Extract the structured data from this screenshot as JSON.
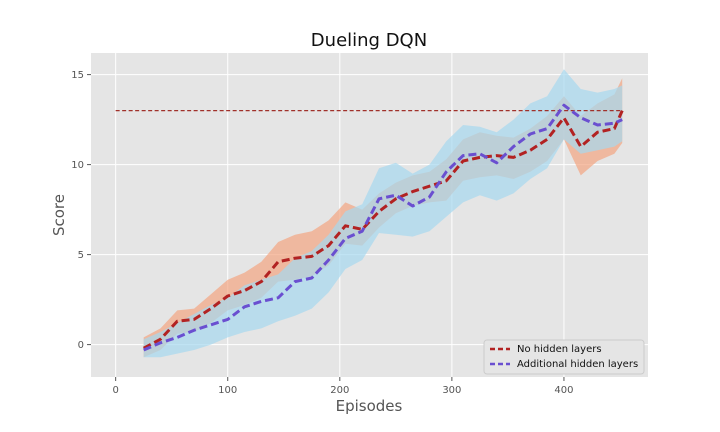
{
  "chart_data": {
    "type": "line",
    "title": "Dueling DQN",
    "xlabel": "Episodes",
    "ylabel": "Score",
    "xlim": [
      -22,
      475
    ],
    "ylim": [
      -1.8,
      16.2
    ],
    "xticks": [
      0,
      100,
      200,
      300,
      400
    ],
    "yticks": [
      0,
      5,
      10,
      15
    ],
    "grid": true,
    "legend_position": "lower-right",
    "reference_line": {
      "y": 13,
      "x_range": [
        0,
        450
      ],
      "color": "#a0302a"
    },
    "x": [
      25,
      40,
      55,
      70,
      85,
      100,
      115,
      130,
      145,
      160,
      175,
      190,
      205,
      220,
      235,
      250,
      265,
      280,
      295,
      310,
      325,
      340,
      355,
      370,
      385,
      400,
      415,
      430,
      445,
      452
    ],
    "series": [
      {
        "name": "No hidden layers",
        "color": "#b22222",
        "band_color": "#f4a582",
        "values": [
          -0.2,
          0.3,
          1.3,
          1.4,
          2.0,
          2.7,
          3.0,
          3.5,
          4.6,
          4.8,
          4.9,
          5.5,
          6.6,
          6.4,
          7.4,
          8.1,
          8.5,
          8.8,
          9.1,
          10.2,
          10.4,
          10.5,
          10.4,
          10.8,
          11.4,
          12.6,
          11.0,
          11.8,
          12.0,
          13.0
        ],
        "lower": [
          -0.7,
          -0.3,
          0.6,
          0.7,
          1.2,
          1.9,
          2.2,
          2.6,
          3.5,
          3.6,
          3.8,
          4.4,
          5.6,
          5.5,
          6.5,
          7.3,
          7.7,
          7.9,
          8.0,
          9.1,
          9.3,
          9.4,
          9.2,
          9.6,
          10.2,
          11.4,
          9.4,
          10.2,
          10.6,
          11.2
        ],
        "upper": [
          0.4,
          0.9,
          1.9,
          2.0,
          2.8,
          3.6,
          4.0,
          4.6,
          5.7,
          6.1,
          6.3,
          6.9,
          7.9,
          7.5,
          8.4,
          9.0,
          9.4,
          9.6,
          10.3,
          11.4,
          11.8,
          11.6,
          11.5,
          12.0,
          12.7,
          13.8,
          12.7,
          13.4,
          13.9,
          14.8
        ]
      },
      {
        "name": "Additional hidden layers",
        "color": "#6a4fd0",
        "band_color": "#a6d8f0",
        "values": [
          -0.3,
          0.1,
          0.4,
          0.8,
          1.1,
          1.4,
          2.1,
          2.4,
          2.6,
          3.5,
          3.7,
          4.7,
          5.9,
          6.3,
          8.1,
          8.3,
          7.7,
          8.2,
          9.6,
          10.5,
          10.6,
          10.1,
          11.0,
          11.7,
          12.0,
          13.3,
          12.6,
          12.2,
          12.3,
          12.5
        ],
        "lower": [
          -0.7,
          -0.7,
          -0.5,
          -0.3,
          0.0,
          0.4,
          0.7,
          0.9,
          1.3,
          1.6,
          2.0,
          2.9,
          4.2,
          4.7,
          6.2,
          6.1,
          6.0,
          6.3,
          7.1,
          7.9,
          8.3,
          8.0,
          8.4,
          9.2,
          9.8,
          11.4,
          10.6,
          10.8,
          11.0,
          11.3
        ],
        "upper": [
          0.3,
          0.7,
          1.2,
          1.7,
          2.2,
          2.6,
          3.3,
          3.6,
          3.9,
          4.8,
          5.2,
          6.1,
          7.4,
          7.8,
          9.8,
          10.1,
          9.5,
          10.0,
          11.3,
          12.2,
          12.1,
          11.8,
          12.5,
          13.4,
          13.8,
          15.3,
          14.2,
          14.0,
          14.2,
          14.4
        ]
      }
    ]
  }
}
